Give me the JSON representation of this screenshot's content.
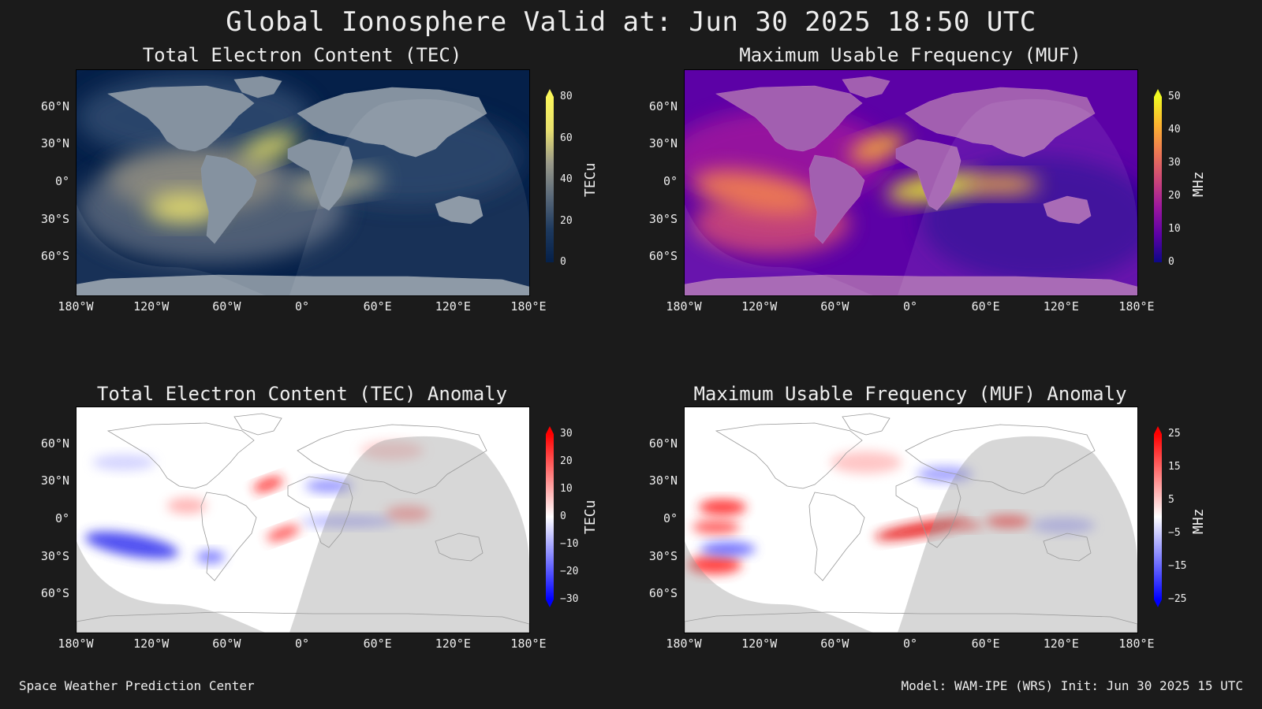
{
  "title": "Global Ionosphere Valid at: Jun 30 2025 18:50 UTC",
  "footer": {
    "left": "Space Weather Prediction Center",
    "right": "Model: WAM-IPE (WRS) Init: Jun 30 2025 15 UTC"
  },
  "lat_ticks": [
    "60°N",
    "30°N",
    "0°",
    "30°S",
    "60°S"
  ],
  "lon_ticks": [
    "180°W",
    "120°W",
    "60°W",
    "0°",
    "60°E",
    "120°E",
    "180°E"
  ],
  "chart_data": [
    {
      "type": "heatmap",
      "title": "Total Electron Content (TEC)",
      "colorbar_label": "TECu",
      "colorbar_ticks": [
        "80",
        "60",
        "40",
        "20",
        "0"
      ],
      "colormap": [
        "#052049",
        "#1e3a5f",
        "#5b6a7a",
        "#9a9a8a",
        "#e8e070",
        "#fbf75a"
      ],
      "range": [
        0,
        80
      ],
      "hotspots": [
        {
          "label": "peak",
          "lon": -35,
          "lat": 18,
          "value": 80
        },
        {
          "label": "peak",
          "lon": -95,
          "lat": -25,
          "value": 80
        },
        {
          "label": "band",
          "lon": 20,
          "lat": -5,
          "value": 55
        }
      ]
    },
    {
      "type": "heatmap",
      "title": "Maximum Usable Frequency (MUF)",
      "colorbar_label": "MHz",
      "colorbar_ticks": [
        "50",
        "40",
        "30",
        "20",
        "10",
        "0"
      ],
      "colormap": [
        "#0d0887",
        "#5c01a6",
        "#9c179e",
        "#cc4778",
        "#ed7953",
        "#fdb42f",
        "#f0f921"
      ],
      "range": [
        0,
        50
      ],
      "hotspots": [
        {
          "label": "peak",
          "lon": 20,
          "lat": -5,
          "value": 50
        },
        {
          "label": "peak",
          "lon": -35,
          "lat": 18,
          "value": 45
        },
        {
          "label": "band",
          "lon": -140,
          "lat": -30,
          "value": 40
        }
      ]
    },
    {
      "type": "heatmap",
      "title": "Total Electron Content (TEC) Anomaly",
      "colorbar_label": "TECu",
      "colorbar_ticks": [
        "30",
        "20",
        "10",
        "0",
        "−10",
        "−20",
        "−30"
      ],
      "colormap": [
        "#0000ff",
        "#8080ff",
        "#ffffff",
        "#ff8080",
        "#ff0000"
      ],
      "range": [
        -30,
        30
      ],
      "hotspots": [
        {
          "label": "negative",
          "lon": -140,
          "lat": -18,
          "value": -25
        },
        {
          "label": "positive",
          "lon": -30,
          "lat": 28,
          "value": 25
        },
        {
          "label": "positive",
          "lon": -15,
          "lat": -12,
          "value": 20
        }
      ]
    },
    {
      "type": "heatmap",
      "title": "Maximum Usable Frequency (MUF) Anomaly",
      "colorbar_label": "MHz",
      "colorbar_ticks": [
        "25",
        "15",
        "5",
        "−5",
        "−15",
        "−25"
      ],
      "colormap": [
        "#0000ff",
        "#8080ff",
        "#ffffff",
        "#ff8080",
        "#ff0000"
      ],
      "range": [
        -25,
        25
      ],
      "hotspots": [
        {
          "label": "positive",
          "lon": 0,
          "lat": -10,
          "value": 20
        },
        {
          "label": "positive",
          "lon": -145,
          "lat": 8,
          "value": 20
        },
        {
          "label": "negative",
          "lon": -150,
          "lat": -30,
          "value": -15
        }
      ]
    }
  ]
}
